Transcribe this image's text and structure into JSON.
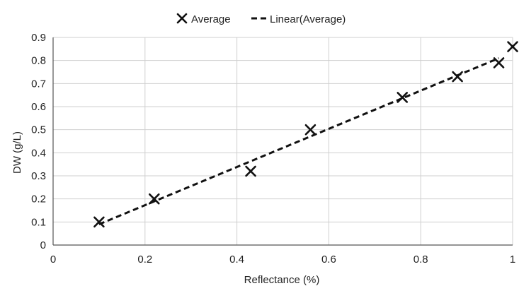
{
  "chart_data": {
    "type": "scatter",
    "title": "",
    "xlabel": "Reflectance (%)",
    "ylabel": "DW (g/L)",
    "xlim": [
      0,
      1
    ],
    "ylim": [
      0,
      0.9
    ],
    "x_ticks": [
      "0",
      "0.2",
      "0.4",
      "0.6",
      "0.8",
      "1"
    ],
    "y_ticks": [
      "0",
      "0.1",
      "0.2",
      "0.3",
      "0.4",
      "0.5",
      "0.6",
      "0.7",
      "0.8",
      "0.9"
    ],
    "grid": true,
    "legend_position": "top",
    "series": [
      {
        "name": "Average",
        "marker": "x",
        "x": [
          0.1,
          0.22,
          0.43,
          0.56,
          0.76,
          0.88,
          0.97,
          1.0
        ],
        "y": [
          0.1,
          0.2,
          0.32,
          0.5,
          0.64,
          0.73,
          0.79,
          0.86
        ]
      },
      {
        "name": "Linear(Average)",
        "style": "dashed",
        "x": [
          0.1,
          0.97
        ],
        "y": [
          0.09,
          0.81
        ]
      }
    ],
    "colors": {
      "marker": "#111111",
      "line": "#111111",
      "grid": "#cfcfcf"
    }
  }
}
